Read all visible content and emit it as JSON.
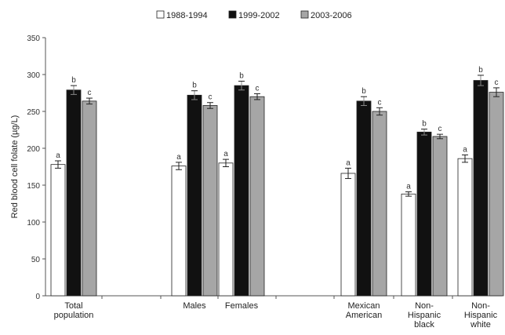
{
  "chart_data": {
    "type": "bar",
    "ylabel": "Red blood cell folate (µg/L)",
    "xlabel": "",
    "ylim": [
      0,
      350
    ],
    "yticks": [
      0,
      50,
      100,
      150,
      200,
      250,
      300,
      350
    ],
    "legend_position": "top-center",
    "grid": false,
    "categories": [
      {
        "lines": [
          "Total",
          "population"
        ]
      },
      {
        "lines": [
          "Males"
        ]
      },
      {
        "lines": [
          "Females"
        ]
      },
      {
        "lines": [
          "Mexican",
          "American"
        ]
      },
      {
        "lines": [
          "Non-",
          "Hispanic",
          "black"
        ]
      },
      {
        "lines": [
          "Non-",
          "Hispanic",
          "white"
        ]
      }
    ],
    "category_groups": [
      [
        0
      ],
      [
        1,
        2
      ],
      [
        3,
        4,
        5
      ]
    ],
    "series": [
      {
        "name": "1988-1994",
        "color": "#ffffff",
        "values": [
          178,
          176,
          180,
          166,
          138,
          186
        ],
        "errors": [
          5,
          5,
          5,
          7,
          3,
          5
        ],
        "labels": [
          "a",
          "a",
          "a",
          "a",
          "a",
          "a"
        ]
      },
      {
        "name": "1999-2002",
        "color": "#111111",
        "values": [
          279,
          272,
          285,
          264,
          222,
          292
        ],
        "errors": [
          6,
          6,
          6,
          6,
          4,
          7
        ],
        "labels": [
          "b",
          "b",
          "b",
          "b",
          "b",
          "b"
        ]
      },
      {
        "name": "2003-2006",
        "color": "#a6a6a6",
        "values": [
          264,
          258,
          270,
          250,
          216,
          276
        ],
        "errors": [
          4,
          4,
          4,
          5,
          3,
          6
        ],
        "labels": [
          "c",
          "c",
          "c",
          "c",
          "c",
          "c"
        ]
      }
    ]
  }
}
